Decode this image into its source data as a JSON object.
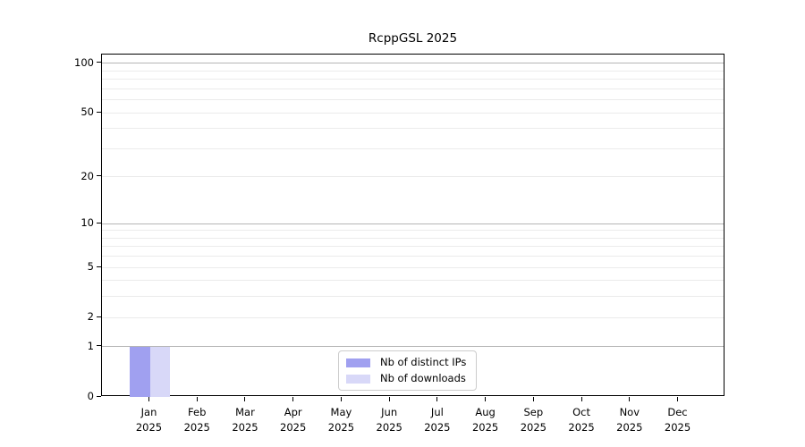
{
  "chart_data": {
    "type": "bar",
    "title": "RcppGSL 2025",
    "x_tick_months": [
      "Jan",
      "Feb",
      "Mar",
      "Apr",
      "May",
      "Jun",
      "Jul",
      "Aug",
      "Sep",
      "Oct",
      "Nov",
      "Dec"
    ],
    "x_tick_year": "2025",
    "y_ticks": [
      0,
      1,
      2,
      5,
      10,
      20,
      50,
      100
    ],
    "y_scale": "log1p",
    "ylim": [
      0,
      113
    ],
    "grid": {
      "major_values": [
        1,
        10,
        100
      ],
      "minor_values": [
        2,
        3,
        4,
        5,
        6,
        7,
        8,
        9,
        20,
        30,
        40,
        50,
        60,
        70,
        80,
        90
      ],
      "major_color": "#b5b5b5",
      "minor_color": "#ebebeb"
    },
    "series": [
      {
        "name": "Nb of distinct IPs",
        "color": "#a0a0f0",
        "values": [
          1,
          0,
          0,
          0,
          0,
          0,
          0,
          0,
          0,
          0,
          0,
          0
        ]
      },
      {
        "name": "Nb of downloads",
        "color": "#d8d8f8",
        "values": [
          1,
          0,
          0,
          0,
          0,
          0,
          0,
          0,
          0,
          0,
          0,
          0
        ]
      }
    ],
    "legend_position": "bottom-center",
    "spine_color": "#000000"
  }
}
